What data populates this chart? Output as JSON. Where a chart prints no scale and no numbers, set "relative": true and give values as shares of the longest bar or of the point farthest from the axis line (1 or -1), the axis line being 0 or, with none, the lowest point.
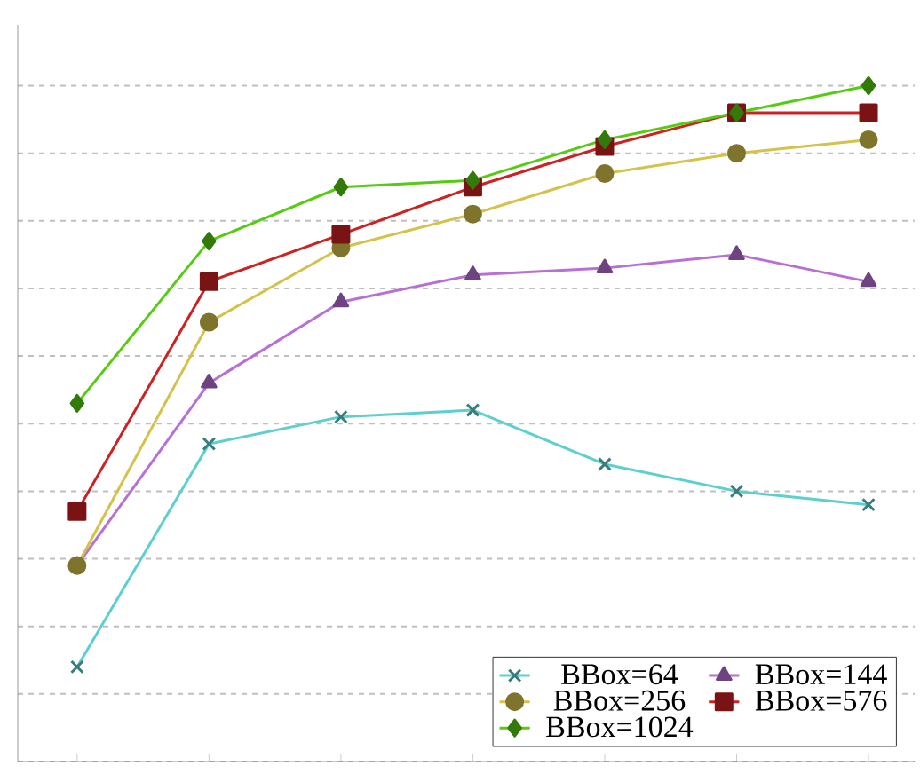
{
  "chart_data": {
    "type": "line",
    "relative": true,
    "grid": "y",
    "legend": "bottom right",
    "line_style": "solid",
    "categories": [
      null,
      null,
      null,
      null,
      null,
      null,
      null
    ],
    "series": [
      {
        "name": "BBox=64",
        "color": "#5ecfcf",
        "marker": "cross",
        "values": [
          0.14,
          0.47,
          0.51,
          0.52,
          0.44,
          0.4,
          0.38
        ]
      },
      {
        "name": "BBox=144",
        "color": "#b86fd6",
        "marker": "triangle",
        "values": [
          0.29,
          0.56,
          0.68,
          0.72,
          0.73,
          0.75,
          0.71
        ]
      },
      {
        "name": "BBox=256",
        "color": "#d4c24a",
        "marker": "circle",
        "values": [
          0.29,
          0.65,
          0.76,
          0.81,
          0.87,
          0.9,
          0.92
        ]
      },
      {
        "name": "BBox=576",
        "color": "#cc2222",
        "marker": "square",
        "values": [
          0.37,
          0.71,
          0.78,
          0.85,
          0.91,
          0.96,
          0.96
        ]
      },
      {
        "name": "BBox=1024",
        "color": "#55cc11",
        "marker": "diamond",
        "values": [
          0.53,
          0.77,
          0.85,
          0.86,
          0.92,
          0.96,
          1.0
        ]
      }
    ]
  }
}
